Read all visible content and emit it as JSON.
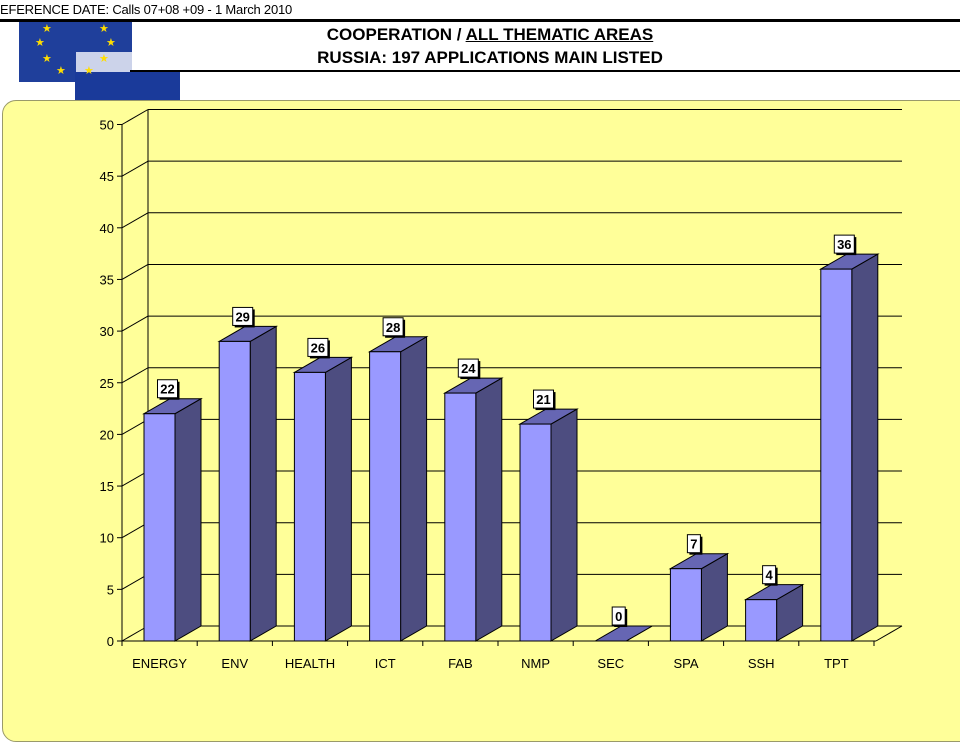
{
  "header": {
    "reference_date": "EFERENCE DATE:  Calls 07+08  +09 - 1  March 2010",
    "title_plain": "COOPERATION  / ",
    "title_underlined": "ALL THEMATIC AREAS",
    "subtitle": "RUSSIA: 197 APPLICATIONS MAIN LISTED"
  },
  "logo": {
    "icon": "eu-flag-icon",
    "colors": {
      "field": "#1f3f9b",
      "stars": "#ffdd00"
    }
  },
  "colors": {
    "background_panel": "#ffff99",
    "bar_front": "#9999ff",
    "bar_side": "#4d4d80",
    "bar_top": "#6666b3",
    "gridline": "#000000"
  },
  "chart_data": {
    "type": "bar",
    "categories": [
      "ENERGY",
      "ENV",
      "HEALTH",
      "ICT",
      "FAB",
      "NMP",
      "SEC",
      "SPA",
      "SSH",
      "TPT"
    ],
    "values": [
      22,
      29,
      26,
      28,
      24,
      21,
      0,
      7,
      4,
      36
    ],
    "data_labels": [
      "22",
      "29",
      "26",
      "28",
      "24",
      "21",
      "0",
      "7",
      "4",
      "36"
    ],
    "ylim": [
      0,
      50
    ],
    "yticks": [
      0,
      5,
      10,
      15,
      20,
      25,
      30,
      35,
      40,
      45,
      50
    ],
    "ytick_labels": [
      "0",
      "5",
      "10",
      "15",
      "20",
      "25",
      "30",
      "35",
      "40",
      "45",
      "50"
    ],
    "grid": true,
    "three_d": true
  }
}
